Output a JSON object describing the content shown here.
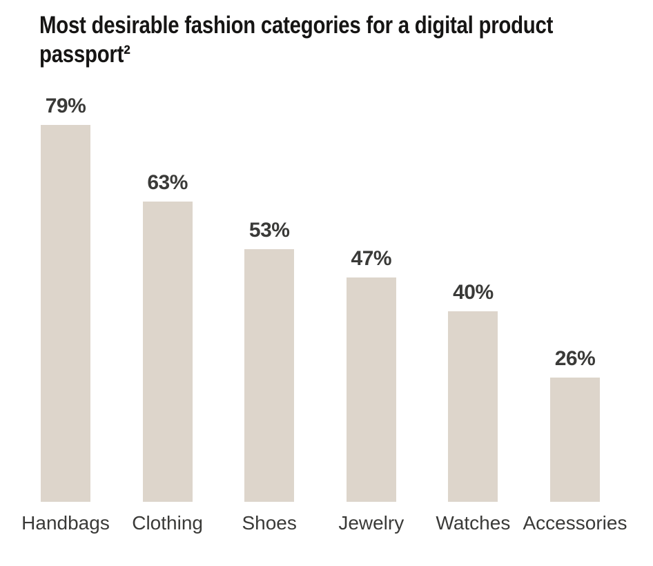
{
  "chart_data": {
    "type": "bar",
    "title": "Most desirable fashion categories for a digital product passport²",
    "categories": [
      "Handbags",
      "Clothing",
      "Shoes",
      "Jewelry",
      "Watches",
      "Accessories"
    ],
    "values": [
      79,
      63,
      53,
      47,
      40,
      26
    ],
    "value_labels": [
      "79%",
      "63%",
      "53%",
      "47%",
      "40%",
      "26%"
    ],
    "xlabel": "",
    "ylabel": "",
    "ylim": [
      0,
      85
    ],
    "grid": false,
    "legend": false,
    "axes_visible": false,
    "value_label_position": "above-bar",
    "bar_color": "#ddd5cb",
    "value_label_color": "#3a3a38",
    "category_label_color": "#3a3a38",
    "title_color": "#161514",
    "background_color": "#ffffff"
  }
}
